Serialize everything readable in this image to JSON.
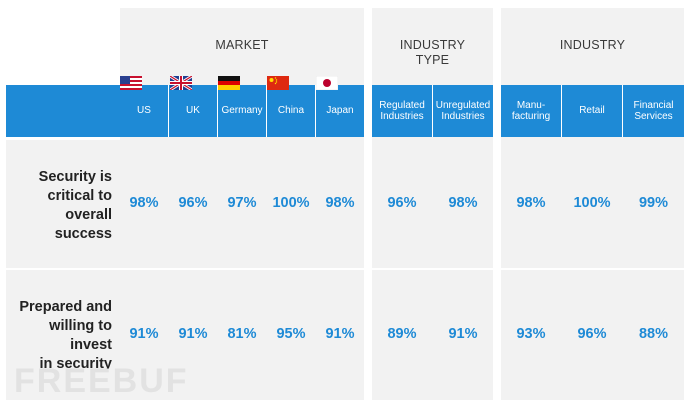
{
  "groups": {
    "market": "MARKET",
    "industry_type_line1": "INDUSTRY",
    "industry_type_line2": "TYPE",
    "industry": "INDUSTRY"
  },
  "columns": {
    "us": "US",
    "uk": "UK",
    "germany": "Germany",
    "china": "China",
    "japan": "Japan",
    "regulated_line1": "Regulated",
    "regulated_line2": "Industries",
    "unregulated_line1": "Unregulated",
    "unregulated_line2": "Industries",
    "manufacturing_line1": "Manu-",
    "manufacturing_line2": "facturing",
    "retail": "Retail",
    "financial_line1": "Financial",
    "financial_line2": "Services"
  },
  "rows": [
    {
      "label_lines": [
        "Security is",
        "critical to",
        "overall",
        "success"
      ],
      "values": [
        "98%",
        "96%",
        "97%",
        "100%",
        "98%",
        "96%",
        "98%",
        "98%",
        "100%",
        "99%"
      ]
    },
    {
      "label_lines": [
        "Prepared and",
        "willing to",
        "invest",
        "in security"
      ],
      "values": [
        "91%",
        "91%",
        "81%",
        "95%",
        "91%",
        "89%",
        "91%",
        "93%",
        "96%",
        "88%"
      ]
    }
  ],
  "flags": [
    "us-flag",
    "uk-flag",
    "germany-flag",
    "china-flag",
    "japan-flag"
  ],
  "watermark": "FREEBUF",
  "colors": {
    "accent": "#1e8ad6",
    "panel": "#f2f2f2",
    "label": "#222222"
  }
}
